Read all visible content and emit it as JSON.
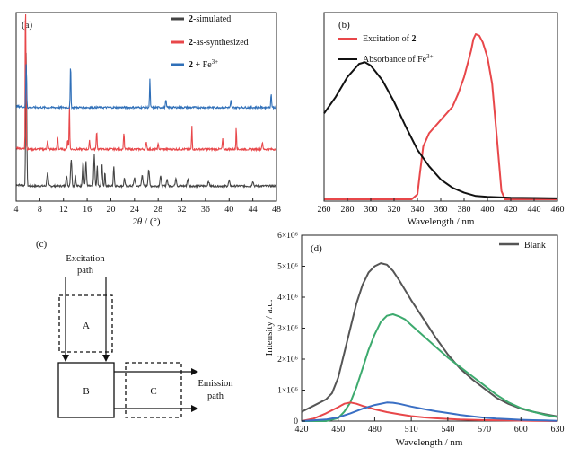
{
  "chart_data": [
    {
      "panel": "(a)",
      "type": "line",
      "xlabel": "2θ / (°)",
      "ylabel": "",
      "xlim": [
        4,
        48
      ],
      "x_ticks": [
        "4",
        "8",
        "12",
        "16",
        "20",
        "24",
        "28",
        "32",
        "36",
        "40",
        "44",
        "48"
      ],
      "legend": {
        "placement": "top-right",
        "entries": [
          {
            "bold": "2",
            "text": "-simulated",
            "color": "#444444"
          },
          {
            "bold": "2",
            "text": "-as-synthesized",
            "color": "#e8474a"
          },
          {
            "bold": "2",
            "text": " + Fe3+",
            "color": "#2f6fb8"
          }
        ]
      },
      "series": [
        {
          "name": "2-simulated",
          "color": "#444444",
          "baseline": 0.08,
          "noise": 0.012,
          "peaks": [
            [
              5.7,
              0.8,
              0.12
            ],
            [
              9.3,
              0.08,
              0.15
            ],
            [
              12.5,
              0.06,
              0.15
            ],
            [
              13.3,
              0.16,
              0.15
            ],
            [
              14.0,
              0.07,
              0.12
            ],
            [
              15.3,
              0.15,
              0.15
            ],
            [
              15.8,
              0.15,
              0.12
            ],
            [
              17.2,
              0.19,
              0.12
            ],
            [
              17.7,
              0.12,
              0.1
            ],
            [
              18.5,
              0.13,
              0.12
            ],
            [
              19.0,
              0.08,
              0.1
            ],
            [
              20.5,
              0.12,
              0.12
            ],
            [
              22.3,
              0.05,
              0.12
            ],
            [
              24.0,
              0.05,
              0.15
            ],
            [
              25.3,
              0.07,
              0.15
            ],
            [
              26.4,
              0.1,
              0.15
            ],
            [
              28.4,
              0.06,
              0.15
            ],
            [
              29.5,
              0.04,
              0.15
            ],
            [
              31.0,
              0.05,
              0.15
            ],
            [
              33.0,
              0.04,
              0.15
            ],
            [
              36.5,
              0.03,
              0.15
            ],
            [
              40.0,
              0.03,
              0.15
            ],
            [
              44.0,
              0.03,
              0.15
            ]
          ]
        },
        {
          "name": "2-as-synthesized",
          "color": "#e8474a",
          "baseline": 0.3,
          "noise": 0.012,
          "peaks": [
            [
              5.6,
              1.3,
              0.08
            ],
            [
              9.3,
              0.05,
              0.12
            ],
            [
              11.0,
              0.08,
              0.1
            ],
            [
              12.7,
              0.06,
              0.1
            ],
            [
              13.0,
              0.28,
              0.08
            ],
            [
              16.4,
              0.05,
              0.1
            ],
            [
              17.6,
              0.11,
              0.1
            ],
            [
              22.2,
              0.1,
              0.1
            ],
            [
              26.0,
              0.04,
              0.12
            ],
            [
              28.0,
              0.03,
              0.12
            ],
            [
              33.7,
              0.14,
              0.08
            ],
            [
              38.9,
              0.06,
              0.1
            ],
            [
              41.2,
              0.14,
              0.08
            ],
            [
              45.6,
              0.04,
              0.12
            ]
          ]
        },
        {
          "name": "2 + Fe3+",
          "color": "#2f6fb8",
          "baseline": 0.55,
          "noise": 0.012,
          "peaks": [
            [
              5.7,
              0.26,
              0.1
            ],
            [
              13.2,
              0.27,
              0.08
            ],
            [
              26.6,
              0.18,
              0.08
            ],
            [
              29.3,
              0.05,
              0.1
            ],
            [
              40.3,
              0.04,
              0.1
            ],
            [
              47.1,
              0.08,
              0.1
            ]
          ]
        }
      ]
    },
    {
      "panel": "(b)",
      "type": "line",
      "xlabel": "Wavelength / nm",
      "ylabel": "",
      "xlim": [
        260,
        460
      ],
      "x_ticks": [
        "260",
        "280",
        "300",
        "320",
        "340",
        "360",
        "380",
        "400",
        "420",
        "440",
        "460"
      ],
      "legend": {
        "placement": "top-left",
        "entries": [
          {
            "text": "Excitation of ",
            "bold": "2",
            "color": "#e8474a"
          },
          {
            "text": "Absorbance of Fe3+",
            "color": "#111111"
          }
        ]
      },
      "series": [
        {
          "name": "Excitation of 2",
          "color": "#e8474a",
          "x": [
            260,
            335,
            340,
            342,
            345,
            350,
            360,
            370,
            375,
            380,
            383,
            386,
            388,
            390,
            393,
            396,
            400,
            404,
            408,
            412,
            415,
            460
          ],
          "y": [
            0.0,
            0.0,
            0.03,
            0.15,
            0.32,
            0.4,
            0.48,
            0.56,
            0.64,
            0.74,
            0.82,
            0.9,
            0.97,
            1.0,
            0.99,
            0.95,
            0.86,
            0.7,
            0.38,
            0.05,
            0.0,
            0.0
          ]
        },
        {
          "name": "Absorbance of Fe3+",
          "color": "#111111",
          "x": [
            260,
            270,
            280,
            290,
            295,
            300,
            310,
            320,
            330,
            340,
            350,
            360,
            370,
            380,
            390,
            400,
            420,
            440,
            460
          ],
          "y": [
            0.52,
            0.62,
            0.74,
            0.82,
            0.83,
            0.81,
            0.72,
            0.59,
            0.44,
            0.3,
            0.2,
            0.12,
            0.07,
            0.04,
            0.02,
            0.015,
            0.01,
            0.008,
            0.006
          ]
        }
      ]
    },
    {
      "panel": "(d)",
      "type": "line",
      "xlabel": "Wavelength / nm",
      "ylabel": "Intensity / a.u.",
      "xlim": [
        420,
        630
      ],
      "ylim": [
        0,
        6000000
      ],
      "x_ticks": [
        "420",
        "450",
        "480",
        "510",
        "540",
        "570",
        "600",
        "630"
      ],
      "y_ticks": [
        "0",
        "1×10⁶",
        "2×10⁶",
        "3×10⁶",
        "4×10⁶",
        "5×10⁶",
        "6×10⁶"
      ],
      "legend": {
        "placement": "top-right",
        "entries": [
          {
            "text": "Blank",
            "color": "#555555"
          }
        ]
      },
      "series": [
        {
          "name": "Blank",
          "color": "#555555",
          "x": [
            420,
            430,
            440,
            445,
            450,
            455,
            460,
            465,
            470,
            475,
            480,
            485,
            490,
            495,
            500,
            510,
            520,
            530,
            540,
            550,
            560,
            570,
            580,
            590,
            600,
            610,
            620,
            630
          ],
          "y": [
            300000,
            500000,
            700000,
            900000,
            1400000,
            2200000,
            3000000,
            3800000,
            4400000,
            4800000,
            5000000,
            5100000,
            5050000,
            4850000,
            4550000,
            3900000,
            3300000,
            2700000,
            2150000,
            1700000,
            1350000,
            1050000,
            750000,
            550000,
            400000,
            300000,
            220000,
            150000
          ]
        },
        {
          "name": "",
          "color": "#3daa6e",
          "x": [
            420,
            440,
            450,
            455,
            460,
            465,
            470,
            475,
            480,
            485,
            490,
            495,
            500,
            505,
            510,
            520,
            530,
            540,
            550,
            560,
            570,
            580,
            590,
            600,
            610,
            620,
            630
          ],
          "y": [
            0,
            0,
            100000,
            300000,
            600000,
            1100000,
            1700000,
            2300000,
            2800000,
            3200000,
            3400000,
            3450000,
            3380000,
            3280000,
            3100000,
            2750000,
            2400000,
            2050000,
            1750000,
            1450000,
            1150000,
            850000,
            600000,
            420000,
            300000,
            200000,
            130000
          ]
        },
        {
          "name": "",
          "color": "#e8474a",
          "x": [
            420,
            430,
            440,
            450,
            455,
            460,
            465,
            470,
            480,
            490,
            500,
            510,
            520,
            530,
            540,
            550,
            560,
            570,
            590,
            610,
            630
          ],
          "y": [
            0,
            80000,
            250000,
            450000,
            560000,
            600000,
            560000,
            490000,
            380000,
            290000,
            220000,
            160000,
            120000,
            90000,
            70000,
            50000,
            40000,
            30000,
            20000,
            10000,
            0
          ]
        },
        {
          "name": "",
          "color": "#3a6fc4",
          "x": [
            420,
            440,
            450,
            460,
            470,
            480,
            490,
            495,
            500,
            510,
            520,
            530,
            540,
            550,
            560,
            570,
            580,
            590,
            600,
            610,
            620,
            630
          ],
          "y": [
            0,
            50000,
            120000,
            250000,
            400000,
            520000,
            600000,
            590000,
            560000,
            470000,
            390000,
            320000,
            260000,
            200000,
            150000,
            110000,
            80000,
            60000,
            40000,
            30000,
            20000,
            10000
          ]
        }
      ]
    }
  ],
  "panel_c": {
    "label": "(c)",
    "excitation_label": [
      "Excitation",
      "path"
    ],
    "box_a": "A",
    "box_b": "B",
    "box_c": "C",
    "emission_label": [
      "Emission",
      "path"
    ]
  }
}
